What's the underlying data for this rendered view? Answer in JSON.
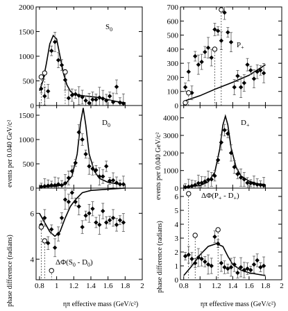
{
  "figure": {
    "ylabel_counts": "events per 0.040 GeV/c²",
    "ylabel_phase": "phase difference (radians)",
    "xlabel": "ηπ effective mass (GeV/c²)",
    "x_ticks": [
      "0.8",
      "1",
      "1.2",
      "1.4",
      "1.6",
      "1.8",
      "2"
    ]
  },
  "chart_data": [
    {
      "id": "S0",
      "type": "scatter",
      "label": "S0",
      "label_text": "S",
      "label_sub": "0",
      "xlim": [
        0.76,
        2.0
      ],
      "ylim": [
        0,
        2000
      ],
      "yticks": [
        "0",
        "500",
        "1000",
        "1500",
        "2000"
      ],
      "ytick_values": [
        0,
        500,
        1000,
        1500,
        2000
      ],
      "points": [
        [
          0.82,
          340
        ],
        [
          0.86,
          190
        ],
        [
          0.9,
          290
        ],
        [
          0.94,
          1110
        ],
        [
          0.98,
          1290
        ],
        [
          1.02,
          920
        ],
        [
          1.06,
          820
        ],
        [
          1.1,
          520
        ],
        [
          1.14,
          150
        ],
        [
          1.18,
          210
        ],
        [
          1.22,
          230
        ],
        [
          1.26,
          200
        ],
        [
          1.3,
          170
        ],
        [
          1.34,
          100
        ],
        [
          1.38,
          50
        ],
        [
          1.42,
          120
        ],
        [
          1.46,
          120
        ],
        [
          1.5,
          160
        ],
        [
          1.54,
          140
        ],
        [
          1.58,
          100
        ],
        [
          1.62,
          190
        ],
        [
          1.66,
          70
        ],
        [
          1.7,
          380
        ],
        [
          1.74,
          60
        ],
        [
          1.78,
          40
        ]
      ],
      "open_points": [
        [
          0.82,
          580
        ],
        [
          0.86,
          660
        ],
        [
          1.1,
          680
        ]
      ],
      "fit_curve": [
        [
          0.8,
          300
        ],
        [
          0.84,
          500
        ],
        [
          0.88,
          850
        ],
        [
          0.92,
          1250
        ],
        [
          0.96,
          1420
        ],
        [
          1.0,
          1350
        ],
        [
          1.04,
          1000
        ],
        [
          1.08,
          650
        ],
        [
          1.12,
          420
        ],
        [
          1.16,
          290
        ],
        [
          1.2,
          230
        ],
        [
          1.3,
          200
        ],
        [
          1.4,
          180
        ],
        [
          1.5,
          160
        ],
        [
          1.6,
          120
        ],
        [
          1.7,
          80
        ],
        [
          1.8,
          55
        ]
      ]
    },
    {
      "id": "Pplus",
      "type": "scatter",
      "label": "P+",
      "label_text": "P",
      "label_sub": "+",
      "xlim": [
        0.76,
        2.0
      ],
      "ylim": [
        0,
        700
      ],
      "yticks": [
        "0",
        "100",
        "200",
        "300",
        "400",
        "500",
        "600",
        "700"
      ],
      "ytick_values": [
        0,
        100,
        200,
        300,
        400,
        500,
        600,
        700
      ],
      "points": [
        [
          0.82,
          130
        ],
        [
          0.86,
          240
        ],
        [
          0.9,
          90
        ],
        [
          0.94,
          350
        ],
        [
          0.98,
          290
        ],
        [
          1.02,
          310
        ],
        [
          1.06,
          380
        ],
        [
          1.1,
          410
        ],
        [
          1.14,
          340
        ],
        [
          1.18,
          540
        ],
        [
          1.22,
          530
        ],
        [
          1.26,
          460
        ],
        [
          1.3,
          660
        ],
        [
          1.34,
          520
        ],
        [
          1.38,
          450
        ],
        [
          1.42,
          130
        ],
        [
          1.46,
          210
        ],
        [
          1.5,
          130
        ],
        [
          1.54,
          160
        ],
        [
          1.58,
          290
        ],
        [
          1.62,
          250
        ],
        [
          1.66,
          190
        ],
        [
          1.7,
          240
        ],
        [
          1.74,
          250
        ],
        [
          1.78,
          230
        ]
      ],
      "open_points": [
        [
          0.82,
          20
        ],
        [
          0.86,
          90
        ],
        [
          1.18,
          400
        ],
        [
          1.26,
          680
        ]
      ],
      "fit_curve": [
        [
          0.8,
          30
        ],
        [
          1.0,
          70
        ],
        [
          1.2,
          120
        ],
        [
          1.4,
          165
        ],
        [
          1.6,
          215
        ],
        [
          1.8,
          290
        ]
      ]
    },
    {
      "id": "D0",
      "type": "scatter",
      "label": "D0",
      "label_text": "D",
      "label_sub": "0",
      "xlim": [
        0.76,
        2.0
      ],
      "ylim": [
        0,
        1700
      ],
      "yticks": [
        "0",
        "500",
        "1000",
        "1500"
      ],
      "ytick_values": [
        0,
        500,
        1000,
        1500
      ],
      "points": [
        [
          0.82,
          30
        ],
        [
          0.86,
          40
        ],
        [
          0.9,
          50
        ],
        [
          0.94,
          60
        ],
        [
          0.98,
          60
        ],
        [
          1.02,
          80
        ],
        [
          1.06,
          60
        ],
        [
          1.1,
          100
        ],
        [
          1.14,
          210
        ],
        [
          1.18,
          350
        ],
        [
          1.22,
          520
        ],
        [
          1.26,
          1150
        ],
        [
          1.3,
          1000
        ],
        [
          1.34,
          700
        ],
        [
          1.38,
          450
        ],
        [
          1.42,
          400
        ],
        [
          1.46,
          370
        ],
        [
          1.5,
          240
        ],
        [
          1.54,
          240
        ],
        [
          1.58,
          450
        ],
        [
          1.62,
          150
        ],
        [
          1.66,
          160
        ],
        [
          1.7,
          110
        ],
        [
          1.74,
          80
        ],
        [
          1.78,
          80
        ]
      ],
      "open_points": [],
      "fit_curve": [
        [
          0.8,
          20
        ],
        [
          1.0,
          40
        ],
        [
          1.1,
          80
        ],
        [
          1.18,
          250
        ],
        [
          1.24,
          700
        ],
        [
          1.28,
          1350
        ],
        [
          1.31,
          1650
        ],
        [
          1.34,
          1300
        ],
        [
          1.38,
          700
        ],
        [
          1.44,
          350
        ],
        [
          1.5,
          200
        ],
        [
          1.6,
          120
        ],
        [
          1.7,
          90
        ],
        [
          1.8,
          70
        ]
      ]
    },
    {
      "id": "Dplus",
      "type": "scatter",
      "label": "D+",
      "label_text": "D",
      "label_sub": "+",
      "xlim": [
        0.76,
        2.0
      ],
      "ylim": [
        0,
        4700
      ],
      "yticks": [
        "0",
        "1000",
        "2000",
        "3000",
        "4000"
      ],
      "ytick_values": [
        0,
        1000,
        2000,
        3000,
        4000
      ],
      "points": [
        [
          0.82,
          50
        ],
        [
          0.86,
          80
        ],
        [
          0.9,
          120
        ],
        [
          0.94,
          180
        ],
        [
          0.98,
          280
        ],
        [
          1.02,
          300
        ],
        [
          1.06,
          380
        ],
        [
          1.1,
          480
        ],
        [
          1.14,
          500
        ],
        [
          1.18,
          700
        ],
        [
          1.22,
          1600
        ],
        [
          1.26,
          2600
        ],
        [
          1.3,
          3300
        ],
        [
          1.34,
          3100
        ],
        [
          1.38,
          2000
        ],
        [
          1.42,
          1200
        ],
        [
          1.46,
          800
        ],
        [
          1.5,
          600
        ],
        [
          1.54,
          500
        ],
        [
          1.58,
          300
        ],
        [
          1.62,
          280
        ],
        [
          1.66,
          260
        ],
        [
          1.7,
          200
        ],
        [
          1.74,
          180
        ],
        [
          1.78,
          150
        ]
      ],
      "open_points": [],
      "fit_curve": [
        [
          0.8,
          50
        ],
        [
          1.0,
          150
        ],
        [
          1.1,
          350
        ],
        [
          1.18,
          900
        ],
        [
          1.24,
          2200
        ],
        [
          1.28,
          3600
        ],
        [
          1.31,
          4100
        ],
        [
          1.34,
          3600
        ],
        [
          1.38,
          2300
        ],
        [
          1.44,
          1200
        ],
        [
          1.5,
          700
        ],
        [
          1.6,
          400
        ],
        [
          1.7,
          250
        ],
        [
          1.8,
          200
        ]
      ]
    },
    {
      "id": "dphiS0D0",
      "type": "scatter",
      "label": "ΔΦ(S0 - D0)",
      "label_text": "ΔΦ(S",
      "label_sub": "0",
      "label_mid": " - D",
      "label_sub2": "0",
      "label_end": ")",
      "xlim": [
        0.76,
        2.0
      ],
      "ylim": [
        3.1,
        7.1
      ],
      "yticks": [
        "4",
        "6"
      ],
      "ytick_values": [
        4,
        6
      ],
      "points": [
        [
          0.82,
          5.5
        ],
        [
          0.86,
          5.8
        ],
        [
          0.9,
          4.7
        ],
        [
          0.94,
          5.3
        ],
        [
          0.98,
          4.5
        ],
        [
          1.02,
          5.1
        ],
        [
          1.06,
          5.8
        ],
        [
          1.1,
          6.6
        ],
        [
          1.14,
          6.5
        ],
        [
          1.18,
          6.9
        ],
        [
          1.22,
          6.5
        ],
        [
          1.26,
          6.3
        ],
        [
          1.3,
          5.4
        ],
        [
          1.34,
          5.9
        ],
        [
          1.38,
          6.0
        ],
        [
          1.42,
          6.2
        ],
        [
          1.46,
          5.6
        ],
        [
          1.5,
          5.5
        ],
        [
          1.54,
          6.1
        ],
        [
          1.58,
          5.6
        ],
        [
          1.62,
          5.7
        ],
        [
          1.66,
          5.8
        ],
        [
          1.7,
          5.5
        ],
        [
          1.74,
          5.7
        ],
        [
          1.78,
          5.6
        ]
      ],
      "open_points": [
        [
          0.86,
          4.8
        ],
        [
          0.94,
          3.5
        ],
        [
          0.82,
          5.4
        ]
      ],
      "fit_curve": [
        [
          0.8,
          6.0
        ],
        [
          0.86,
          5.6
        ],
        [
          0.92,
          5.2
        ],
        [
          0.98,
          5.0
        ],
        [
          1.04,
          5.2
        ],
        [
          1.1,
          5.8
        ],
        [
          1.16,
          6.3
        ],
        [
          1.22,
          6.6
        ],
        [
          1.3,
          6.9
        ],
        [
          1.4,
          7.0
        ],
        [
          1.6,
          7.05
        ],
        [
          1.8,
          7.1
        ]
      ]
    },
    {
      "id": "dphiPD",
      "type": "scatter",
      "label": "ΔΦ(P+ - D+)",
      "label_text": "ΔΦ(P",
      "label_sub": "+",
      "label_mid": " - D",
      "label_sub2": "+",
      "label_end": ")",
      "xlim": [
        0.76,
        2.0
      ],
      "ylim": [
        0,
        6.6
      ],
      "yticks": [
        "0",
        "1",
        "2",
        "3",
        "4",
        "5",
        "6"
      ],
      "ytick_values": [
        0,
        1,
        2,
        3,
        4,
        5,
        6
      ],
      "points": [
        [
          0.82,
          1.7
        ],
        [
          0.86,
          1.8
        ],
        [
          0.9,
          1.5
        ],
        [
          0.94,
          1.2
        ],
        [
          0.98,
          1.6
        ],
        [
          1.02,
          1.5
        ],
        [
          1.06,
          1.3
        ],
        [
          1.1,
          1.1
        ],
        [
          1.14,
          1.0
        ],
        [
          1.18,
          3.1
        ],
        [
          1.22,
          2.6
        ],
        [
          1.26,
          1.2
        ],
        [
          1.3,
          0.9
        ],
        [
          1.34,
          0.8
        ],
        [
          1.38,
          0.9
        ],
        [
          1.42,
          1.1
        ],
        [
          1.46,
          0.5
        ],
        [
          1.5,
          0.9
        ],
        [
          1.54,
          0.7
        ],
        [
          1.58,
          0.8
        ],
        [
          1.62,
          0.7
        ],
        [
          1.66,
          1.1
        ],
        [
          1.7,
          1.4
        ],
        [
          1.74,
          0.9
        ],
        [
          1.78,
          1.0
        ]
      ],
      "open_points": [
        [
          0.86,
          6.2
        ],
        [
          0.94,
          3.2
        ],
        [
          1.22,
          3.6
        ]
      ],
      "fit_curve": [
        [
          0.8,
          0.3
        ],
        [
          0.9,
          1.0
        ],
        [
          1.0,
          1.8
        ],
        [
          1.1,
          2.4
        ],
        [
          1.2,
          2.6
        ],
        [
          1.28,
          2.4
        ],
        [
          1.34,
          1.7
        ],
        [
          1.4,
          1.1
        ],
        [
          1.5,
          0.7
        ],
        [
          1.6,
          0.5
        ],
        [
          1.7,
          0.4
        ],
        [
          1.8,
          0.3
        ]
      ]
    }
  ]
}
